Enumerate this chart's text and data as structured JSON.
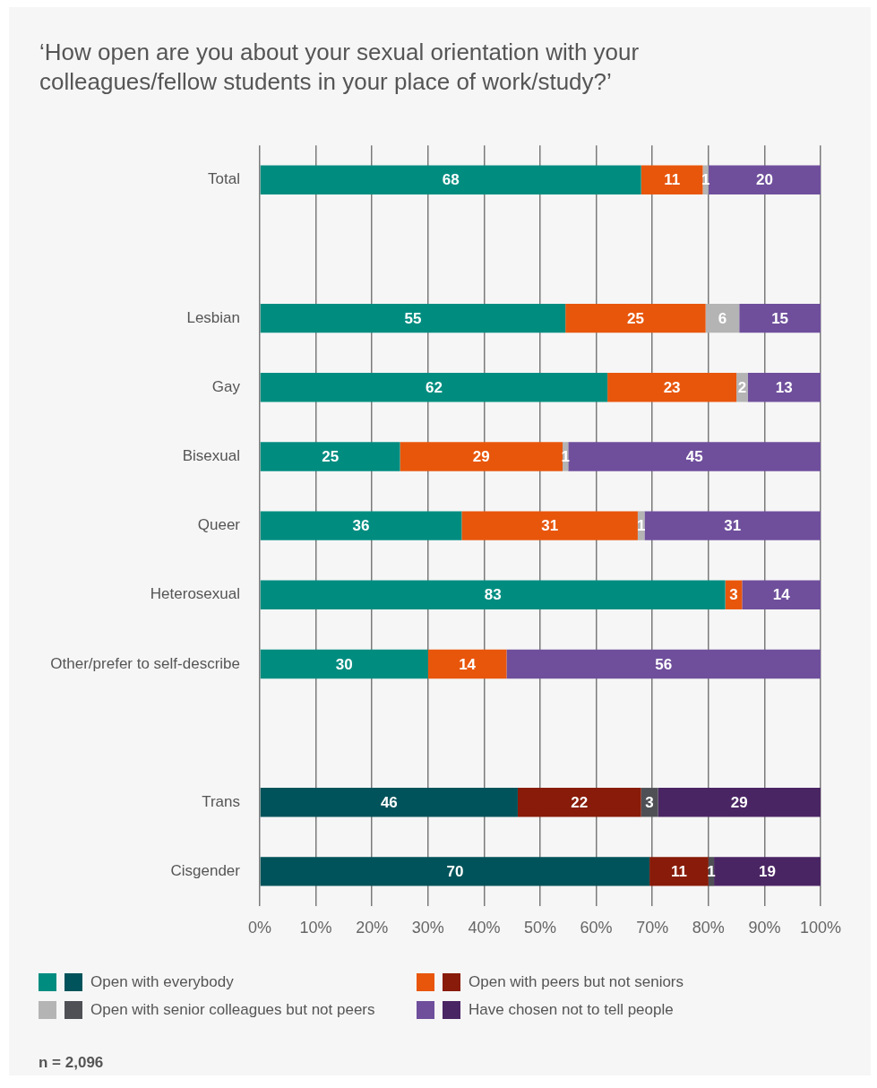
{
  "chart_data": {
    "type": "bar",
    "orientation": "horizontal",
    "stacked": true,
    "title": "‘How open are you about your sexual orientation with your colleagues/fellow students in your place of work/study?’",
    "categories": [
      "Total",
      null,
      "Lesbian",
      "Gay",
      "Bisexual",
      "Queer",
      "Heterosexual",
      "Other/prefer to self-describe",
      null,
      "Trans",
      "Cisgender"
    ],
    "series": [
      {
        "name": "Open with everybody",
        "colors": [
          "#008d80",
          null,
          "#008d80",
          "#008d80",
          "#008d80",
          "#008d80",
          "#008d80",
          "#008d80",
          null,
          "#00535a",
          "#00535a"
        ],
        "values": [
          68,
          null,
          54.5,
          62,
          25,
          36,
          83,
          30,
          null,
          46,
          69.5
        ],
        "value_labels": [
          "68",
          null,
          "55",
          "62",
          "25",
          "36",
          "83",
          "30",
          null,
          "46",
          "70"
        ]
      },
      {
        "name": "Open with peers but not seniors",
        "colors": [
          "#e8560c",
          null,
          "#e8560c",
          "#e8560c",
          "#e8560c",
          "#e8560c",
          "#e8560c",
          "#e8560c",
          null,
          "#881b09",
          "#881b09"
        ],
        "values": [
          11,
          null,
          25,
          23,
          29,
          31.4,
          3,
          14,
          null,
          22,
          10.5
        ],
        "value_labels": [
          "11",
          null,
          "25",
          "23",
          "29",
          "31",
          "3",
          "14",
          null,
          "22",
          "11"
        ]
      },
      {
        "name": "Open with senior colleagues but not peers",
        "colors": [
          "#b4b4b4",
          null,
          "#b4b4b4",
          "#b4b4b4",
          "#b4b4b4",
          "#b4b4b4",
          "#b4b4b4",
          "#b4b4b4",
          null,
          "#4e5056",
          "#4e5056"
        ],
        "values": [
          1,
          null,
          6,
          2,
          1,
          1.2,
          null,
          null,
          null,
          3,
          1
        ],
        "value_labels": [
          "1",
          null,
          "6",
          "2",
          "1",
          "1",
          null,
          null,
          null,
          "3",
          "1"
        ]
      },
      {
        "name": "Have chosen not to tell people",
        "colors": [
          "#6f4f9c",
          null,
          "#6f4f9c",
          "#6f4f9c",
          "#6f4f9c",
          "#6f4f9c",
          "#6f4f9c",
          "#6f4f9c",
          null,
          "#4a2563",
          "#4a2563"
        ],
        "values": [
          20,
          null,
          14.5,
          13,
          45,
          31.4,
          14,
          56,
          null,
          29,
          19
        ],
        "value_labels": [
          "20",
          null,
          "15",
          "13",
          "45",
          "31",
          "14",
          "56",
          null,
          "29",
          "19"
        ]
      }
    ],
    "xlim": [
      0,
      100
    ],
    "xticks": [
      {
        "value": 0,
        "label": "0%"
      },
      {
        "value": 10,
        "label": "10%"
      },
      {
        "value": 20,
        "label": "20%"
      },
      {
        "value": 30,
        "label": "30%"
      },
      {
        "value": 40,
        "label": "40%"
      },
      {
        "value": 50,
        "label": "50%"
      },
      {
        "value": 60,
        "label": "60%"
      },
      {
        "value": 70,
        "label": "70%"
      },
      {
        "value": 80,
        "label": "80%"
      },
      {
        "value": 90,
        "label": "90%"
      },
      {
        "value": 100,
        "label": "100%"
      }
    ],
    "grid": "x",
    "legend": "bottom",
    "annotations": [
      "n = 2,096"
    ]
  }
}
